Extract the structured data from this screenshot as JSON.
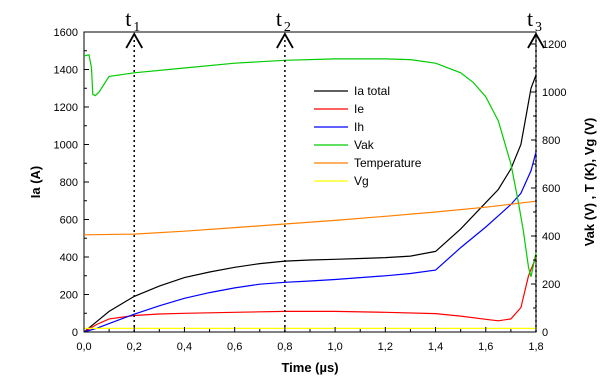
{
  "chart_data": {
    "type": "line",
    "xlabel": "Time (µs)",
    "ylabel_left": "Ia (A)",
    "ylabel_right": "Vak (V) , T (K), Vg (V)",
    "xlim": [
      0,
      1.8
    ],
    "ylim_left": [
      0,
      1600
    ],
    "ylim_right": [
      0,
      1250
    ],
    "x_ticks": [
      "0,0",
      "0,2",
      "0,4",
      "0,6",
      "0,8",
      "1,0",
      "1,2",
      "1,4",
      "1,6",
      "1,8"
    ],
    "y_left_ticks": [
      "0",
      "200",
      "400",
      "600",
      "800",
      "1000",
      "1200",
      "1400",
      "1600"
    ],
    "y_right_ticks": [
      "0",
      "200",
      "400",
      "600",
      "800",
      "1000",
      "1200"
    ],
    "markers": [
      {
        "label": "t",
        "sub": "1",
        "x": 0.2
      },
      {
        "label": "t",
        "sub": "2",
        "x": 0.8
      },
      {
        "label": "t",
        "sub": "3",
        "x": 1.8
      }
    ],
    "legend_position": "center-right",
    "series": [
      {
        "name": "Ia total",
        "color": "#000000",
        "axis": "left",
        "points": [
          [
            0,
            0
          ],
          [
            0.05,
            55
          ],
          [
            0.1,
            110
          ],
          [
            0.2,
            190
          ],
          [
            0.3,
            245
          ],
          [
            0.4,
            290
          ],
          [
            0.5,
            320
          ],
          [
            0.6,
            345
          ],
          [
            0.7,
            365
          ],
          [
            0.8,
            378
          ],
          [
            0.9,
            384
          ],
          [
            1.0,
            388
          ],
          [
            1.1,
            392
          ],
          [
            1.2,
            397
          ],
          [
            1.3,
            405
          ],
          [
            1.4,
            430
          ],
          [
            1.5,
            550
          ],
          [
            1.6,
            690
          ],
          [
            1.65,
            760
          ],
          [
            1.7,
            870
          ],
          [
            1.74,
            1000
          ],
          [
            1.76,
            1150
          ],
          [
            1.78,
            1300
          ],
          [
            1.8,
            1370
          ]
        ]
      },
      {
        "name": "Ie",
        "color": "#ff0000",
        "axis": "left",
        "points": [
          [
            0,
            0
          ],
          [
            0.05,
            40
          ],
          [
            0.1,
            70
          ],
          [
            0.2,
            88
          ],
          [
            0.3,
            96
          ],
          [
            0.4,
            100
          ],
          [
            0.6,
            105
          ],
          [
            0.8,
            110
          ],
          [
            1.0,
            110
          ],
          [
            1.2,
            105
          ],
          [
            1.4,
            98
          ],
          [
            1.5,
            85
          ],
          [
            1.6,
            68
          ],
          [
            1.65,
            60
          ],
          [
            1.7,
            70
          ],
          [
            1.74,
            130
          ],
          [
            1.77,
            300
          ],
          [
            1.8,
            400
          ]
        ]
      },
      {
        "name": "Ih",
        "color": "#0000ff",
        "axis": "left",
        "points": [
          [
            0,
            0
          ],
          [
            0.05,
            20
          ],
          [
            0.1,
            45
          ],
          [
            0.2,
            95
          ],
          [
            0.3,
            140
          ],
          [
            0.4,
            180
          ],
          [
            0.5,
            210
          ],
          [
            0.6,
            235
          ],
          [
            0.7,
            255
          ],
          [
            0.8,
            265
          ],
          [
            0.9,
            272
          ],
          [
            1.0,
            280
          ],
          [
            1.1,
            290
          ],
          [
            1.2,
            300
          ],
          [
            1.3,
            312
          ],
          [
            1.4,
            330
          ],
          [
            1.5,
            450
          ],
          [
            1.6,
            560
          ],
          [
            1.65,
            620
          ],
          [
            1.7,
            680
          ],
          [
            1.74,
            740
          ],
          [
            1.78,
            860
          ],
          [
            1.8,
            960
          ]
        ]
      },
      {
        "name": "Vak",
        "color": "#00cc00",
        "axis": "right",
        "points": [
          [
            0,
            1150
          ],
          [
            0.02,
            1155
          ],
          [
            0.03,
            1100
          ],
          [
            0.035,
            990
          ],
          [
            0.045,
            985
          ],
          [
            0.06,
            1000
          ],
          [
            0.1,
            1065
          ],
          [
            0.2,
            1080
          ],
          [
            0.4,
            1100
          ],
          [
            0.6,
            1120
          ],
          [
            0.8,
            1132
          ],
          [
            1.0,
            1138
          ],
          [
            1.2,
            1138
          ],
          [
            1.3,
            1135
          ],
          [
            1.4,
            1120
          ],
          [
            1.5,
            1080
          ],
          [
            1.55,
            1040
          ],
          [
            1.6,
            980
          ],
          [
            1.65,
            880
          ],
          [
            1.7,
            700
          ],
          [
            1.73,
            540
          ],
          [
            1.75,
            420
          ],
          [
            1.77,
            270
          ],
          [
            1.78,
            230
          ],
          [
            1.8,
            330
          ]
        ]
      },
      {
        "name": "Temperature",
        "color": "#ff8000",
        "axis": "right",
        "points": [
          [
            0,
            405
          ],
          [
            0.2,
            408
          ],
          [
            0.4,
            420
          ],
          [
            0.6,
            435
          ],
          [
            0.8,
            450
          ],
          [
            1.0,
            465
          ],
          [
            1.2,
            482
          ],
          [
            1.4,
            500
          ],
          [
            1.6,
            520
          ],
          [
            1.8,
            545
          ]
        ]
      },
      {
        "name": "Vg",
        "color": "#ffff00",
        "axis": "right",
        "points": [
          [
            0,
            15
          ],
          [
            1.8,
            15
          ]
        ]
      }
    ]
  }
}
